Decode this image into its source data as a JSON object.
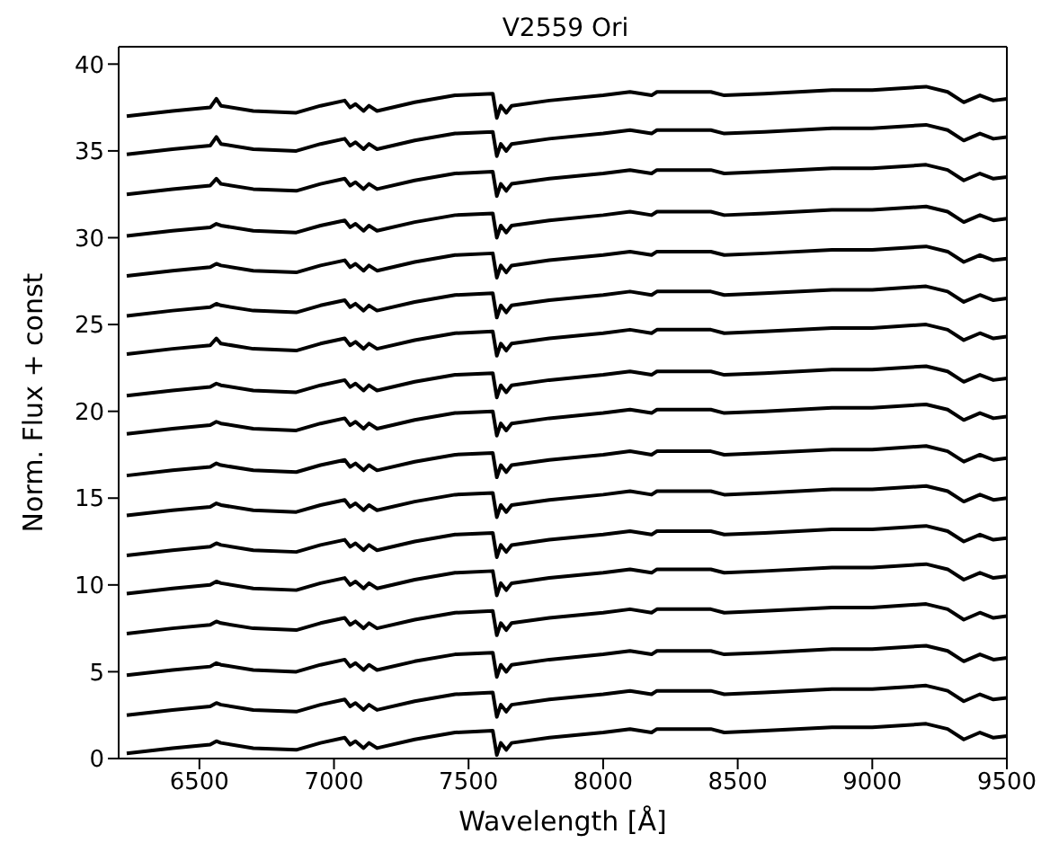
{
  "chart_data": {
    "type": "line",
    "title": "V2559 Ori",
    "xlabel": "Wavelength [Å]",
    "ylabel": "Norm. Flux + const",
    "xlim": [
      6200,
      9500
    ],
    "xticks": [
      6500,
      7000,
      7500,
      8000,
      8500,
      9000,
      9500
    ],
    "ylim": [
      0,
      41
    ],
    "yticks": [
      0,
      5,
      10,
      15,
      20,
      25,
      30,
      35,
      40
    ],
    "marker": "none",
    "line_style": "solid",
    "x": [
      6230,
      6400,
      6540,
      6563,
      6580,
      6700,
      6860,
      6950,
      7040,
      7060,
      7080,
      7110,
      7130,
      7160,
      7300,
      7450,
      7590,
      7605,
      7620,
      7640,
      7660,
      7800,
      8000,
      8100,
      8180,
      8200,
      8400,
      8450,
      8600,
      8850,
      9000,
      9200,
      9280,
      9340,
      9400,
      9450,
      9500
    ],
    "series": [
      {
        "color": "#000000",
        "values": [
          0.3,
          0.6,
          0.8,
          1.0,
          0.9,
          0.6,
          0.5,
          0.9,
          1.2,
          0.8,
          1.0,
          0.6,
          0.9,
          0.6,
          1.1,
          1.5,
          1.6,
          0.2,
          0.9,
          0.5,
          0.9,
          1.2,
          1.5,
          1.7,
          1.5,
          1.7,
          1.7,
          1.5,
          1.6,
          1.8,
          1.8,
          2.0,
          1.7,
          1.1,
          1.5,
          1.2,
          1.3
        ]
      },
      {
        "color": "#000000",
        "values": [
          2.5,
          2.8,
          3.0,
          3.2,
          3.1,
          2.8,
          2.7,
          3.1,
          3.4,
          3.0,
          3.2,
          2.8,
          3.1,
          2.8,
          3.3,
          3.7,
          3.8,
          2.4,
          3.1,
          2.7,
          3.1,
          3.4,
          3.7,
          3.9,
          3.7,
          3.9,
          3.9,
          3.7,
          3.8,
          4.0,
          4.0,
          4.2,
          3.9,
          3.3,
          3.7,
          3.4,
          3.5
        ]
      },
      {
        "color": "#000000",
        "values": [
          4.8,
          5.1,
          5.3,
          5.5,
          5.4,
          5.1,
          5.0,
          5.4,
          5.7,
          5.3,
          5.5,
          5.1,
          5.4,
          5.1,
          5.6,
          6.0,
          6.1,
          4.7,
          5.4,
          5.0,
          5.4,
          5.7,
          6.0,
          6.2,
          6.0,
          6.2,
          6.2,
          6.0,
          6.1,
          6.3,
          6.3,
          6.5,
          6.2,
          5.6,
          6.0,
          5.7,
          5.8
        ]
      },
      {
        "color": "#000000",
        "values": [
          7.2,
          7.5,
          7.7,
          7.9,
          7.8,
          7.5,
          7.4,
          7.8,
          8.1,
          7.7,
          7.9,
          7.5,
          7.8,
          7.5,
          8.0,
          8.4,
          8.5,
          7.1,
          7.8,
          7.4,
          7.8,
          8.1,
          8.4,
          8.6,
          8.4,
          8.6,
          8.6,
          8.4,
          8.5,
          8.7,
          8.7,
          8.9,
          8.6,
          8.0,
          8.4,
          8.1,
          8.2
        ]
      },
      {
        "color": "#000000",
        "values": [
          9.5,
          9.8,
          10.0,
          10.2,
          10.1,
          9.8,
          9.7,
          10.1,
          10.4,
          10.0,
          10.2,
          9.8,
          10.1,
          9.8,
          10.3,
          10.7,
          10.8,
          9.4,
          10.1,
          9.7,
          10.1,
          10.4,
          10.7,
          10.9,
          10.7,
          10.9,
          10.9,
          10.7,
          10.8,
          11.0,
          11.0,
          11.2,
          10.9,
          10.3,
          10.7,
          10.4,
          10.5
        ]
      },
      {
        "color": "#000000",
        "values": [
          11.7,
          12.0,
          12.2,
          12.4,
          12.3,
          12.0,
          11.9,
          12.3,
          12.6,
          12.2,
          12.4,
          12.0,
          12.3,
          12.0,
          12.5,
          12.9,
          13.0,
          11.6,
          12.3,
          11.9,
          12.3,
          12.6,
          12.9,
          13.1,
          12.9,
          13.1,
          13.1,
          12.9,
          13.0,
          13.2,
          13.2,
          13.4,
          13.1,
          12.5,
          12.9,
          12.6,
          12.7
        ]
      },
      {
        "color": "#000000",
        "values": [
          14.0,
          14.3,
          14.5,
          14.7,
          14.6,
          14.3,
          14.2,
          14.6,
          14.9,
          14.5,
          14.7,
          14.3,
          14.6,
          14.3,
          14.8,
          15.2,
          15.3,
          13.9,
          14.6,
          14.2,
          14.6,
          14.9,
          15.2,
          15.4,
          15.2,
          15.4,
          15.4,
          15.2,
          15.3,
          15.5,
          15.5,
          15.7,
          15.4,
          14.8,
          15.2,
          14.9,
          15.0
        ]
      },
      {
        "color": "#000000",
        "values": [
          16.3,
          16.6,
          16.8,
          17.0,
          16.9,
          16.6,
          16.5,
          16.9,
          17.2,
          16.8,
          17.0,
          16.6,
          16.9,
          16.6,
          17.1,
          17.5,
          17.6,
          16.2,
          16.9,
          16.5,
          16.9,
          17.2,
          17.5,
          17.7,
          17.5,
          17.7,
          17.7,
          17.5,
          17.6,
          17.8,
          17.8,
          18.0,
          17.7,
          17.1,
          17.5,
          17.2,
          17.3
        ]
      },
      {
        "color": "#000000",
        "values": [
          18.7,
          19.0,
          19.2,
          19.4,
          19.3,
          19.0,
          18.9,
          19.3,
          19.6,
          19.2,
          19.4,
          19.0,
          19.3,
          19.0,
          19.5,
          19.9,
          20.0,
          18.6,
          19.3,
          18.9,
          19.3,
          19.6,
          19.9,
          20.1,
          19.9,
          20.1,
          20.1,
          19.9,
          20.0,
          20.2,
          20.2,
          20.4,
          20.1,
          19.5,
          19.9,
          19.6,
          19.7
        ]
      },
      {
        "color": "#000000",
        "values": [
          20.9,
          21.2,
          21.4,
          21.6,
          21.5,
          21.2,
          21.1,
          21.5,
          21.8,
          21.4,
          21.6,
          21.2,
          21.5,
          21.2,
          21.7,
          22.1,
          22.2,
          20.8,
          21.5,
          21.1,
          21.5,
          21.8,
          22.1,
          22.3,
          22.1,
          22.3,
          22.3,
          22.1,
          22.2,
          22.4,
          22.4,
          22.6,
          22.3,
          21.7,
          22.1,
          21.8,
          21.9
        ]
      },
      {
        "color": "#000000",
        "values": [
          23.3,
          23.6,
          23.8,
          24.2,
          23.9,
          23.6,
          23.5,
          23.9,
          24.2,
          23.8,
          24.0,
          23.6,
          23.9,
          23.6,
          24.1,
          24.5,
          24.6,
          23.2,
          23.9,
          23.5,
          23.9,
          24.2,
          24.5,
          24.7,
          24.5,
          24.7,
          24.7,
          24.5,
          24.6,
          24.8,
          24.8,
          25.0,
          24.7,
          24.1,
          24.5,
          24.2,
          24.3
        ]
      },
      {
        "color": "#000000",
        "values": [
          25.5,
          25.8,
          26.0,
          26.2,
          26.1,
          25.8,
          25.7,
          26.1,
          26.4,
          26.0,
          26.2,
          25.8,
          26.1,
          25.8,
          26.3,
          26.7,
          26.8,
          25.4,
          26.1,
          25.7,
          26.1,
          26.4,
          26.7,
          26.9,
          26.7,
          26.9,
          26.9,
          26.7,
          26.8,
          27.0,
          27.0,
          27.2,
          26.9,
          26.3,
          26.7,
          26.4,
          26.5
        ]
      },
      {
        "color": "#000000",
        "values": [
          27.8,
          28.1,
          28.3,
          28.5,
          28.4,
          28.1,
          28.0,
          28.4,
          28.7,
          28.3,
          28.5,
          28.1,
          28.4,
          28.1,
          28.6,
          29.0,
          29.1,
          27.7,
          28.4,
          28.0,
          28.4,
          28.7,
          29.0,
          29.2,
          29.0,
          29.2,
          29.2,
          29.0,
          29.1,
          29.3,
          29.3,
          29.5,
          29.2,
          28.6,
          29.0,
          28.7,
          28.8
        ]
      },
      {
        "color": "#000000",
        "values": [
          30.1,
          30.4,
          30.6,
          30.8,
          30.7,
          30.4,
          30.3,
          30.7,
          31.0,
          30.6,
          30.8,
          30.4,
          30.7,
          30.4,
          30.9,
          31.3,
          31.4,
          30.0,
          30.7,
          30.3,
          30.7,
          31.0,
          31.3,
          31.5,
          31.3,
          31.5,
          31.5,
          31.3,
          31.4,
          31.6,
          31.6,
          31.8,
          31.5,
          30.9,
          31.3,
          31.0,
          31.1
        ]
      },
      {
        "color": "#000000",
        "values": [
          32.5,
          32.8,
          33.0,
          33.4,
          33.1,
          32.8,
          32.7,
          33.1,
          33.4,
          33.0,
          33.2,
          32.8,
          33.1,
          32.8,
          33.3,
          33.7,
          33.8,
          32.4,
          33.1,
          32.7,
          33.1,
          33.4,
          33.7,
          33.9,
          33.7,
          33.9,
          33.9,
          33.7,
          33.8,
          34.0,
          34.0,
          34.2,
          33.9,
          33.3,
          33.7,
          33.4,
          33.5
        ]
      },
      {
        "color": "#000000",
        "values": [
          34.8,
          35.1,
          35.3,
          35.8,
          35.4,
          35.1,
          35.0,
          35.4,
          35.7,
          35.3,
          35.5,
          35.1,
          35.4,
          35.1,
          35.6,
          36.0,
          36.1,
          34.7,
          35.4,
          35.0,
          35.4,
          35.7,
          36.0,
          36.2,
          36.0,
          36.2,
          36.2,
          36.0,
          36.1,
          36.3,
          36.3,
          36.5,
          36.2,
          35.6,
          36.0,
          35.7,
          35.8
        ]
      },
      {
        "color": "#000000",
        "values": [
          37.0,
          37.3,
          37.5,
          38.0,
          37.6,
          37.3,
          37.2,
          37.6,
          37.9,
          37.5,
          37.7,
          37.3,
          37.6,
          37.3,
          37.8,
          38.2,
          38.3,
          36.9,
          37.6,
          37.2,
          37.6,
          37.9,
          38.2,
          38.4,
          38.2,
          38.4,
          38.4,
          38.2,
          38.3,
          38.5,
          38.5,
          38.7,
          38.4,
          37.8,
          38.2,
          37.9,
          38.0
        ]
      }
    ]
  }
}
